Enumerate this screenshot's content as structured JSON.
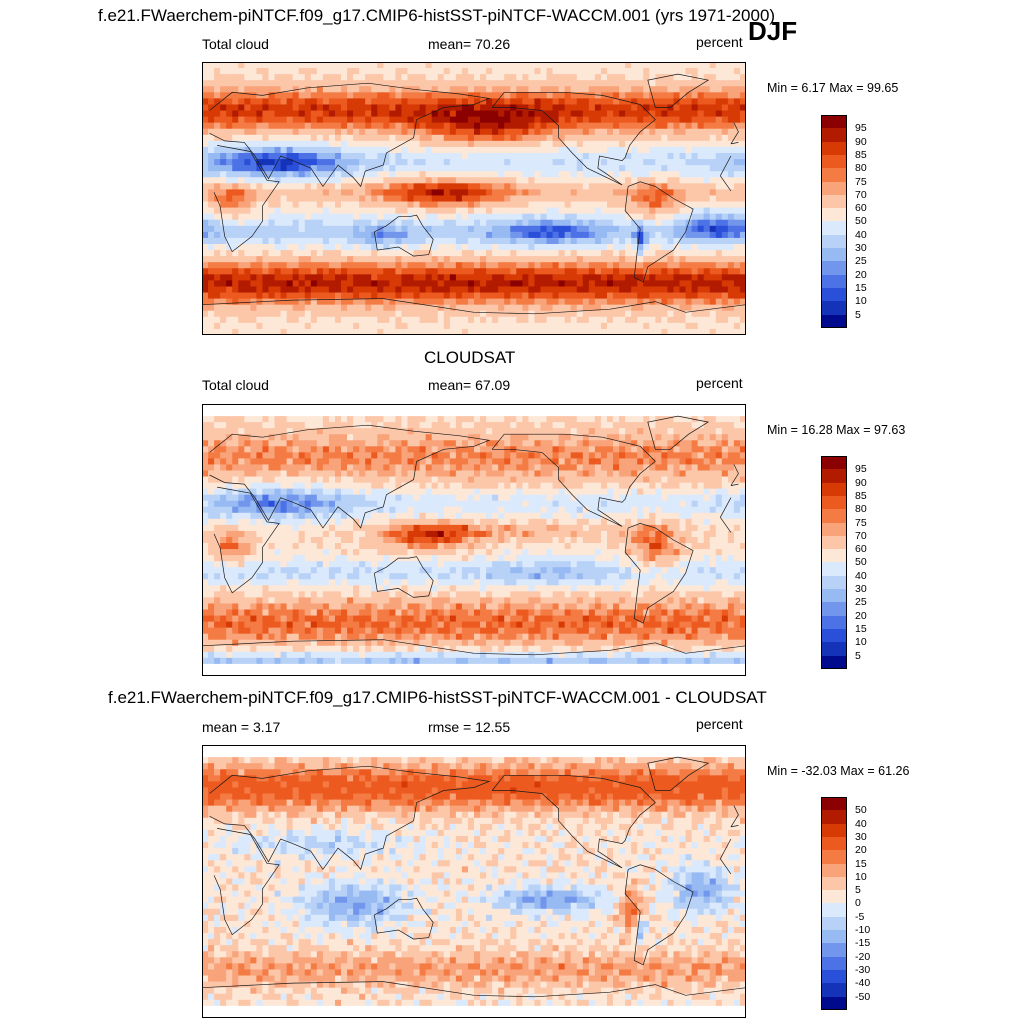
{
  "figure": {
    "season": "DJF",
    "panels": [
      {
        "title": "f.e21.FWaerchem-piNTCF.f09_g17.CMIP6-histSST-piNTCF-WACCM.001 (yrs 1971-2000)",
        "left_text": "Total cloud",
        "center_text": "mean=  70.26",
        "units": "percent",
        "minmax": "Min =   6.17 Max =  99.65",
        "field": "model",
        "colorbar": {
          "labels": [
            "95",
            "90",
            "85",
            "80",
            "75",
            "70",
            "60",
            "50",
            "40",
            "30",
            "25",
            "20",
            "15",
            "10",
            "5"
          ],
          "colors": [
            "#8b0000",
            "#b31b00",
            "#d83a05",
            "#ec5a20",
            "#f47c44",
            "#f9a37a",
            "#fcc6a8",
            "#fde8d8",
            "#dbe9fc",
            "#b8d2f7",
            "#98baf2",
            "#7296ec",
            "#4d72e6",
            "#2a4fd9",
            "#1533b8",
            "#000a8c"
          ]
        }
      },
      {
        "title": "CLOUDSAT",
        "left_text": "Total cloud",
        "center_text": "mean=  67.09",
        "units": "percent",
        "minmax": "Min =  16.28 Max =  97.63",
        "field": "obs",
        "colorbar": {
          "labels": [
            "95",
            "90",
            "85",
            "80",
            "75",
            "70",
            "60",
            "50",
            "40",
            "30",
            "25",
            "20",
            "15",
            "10",
            "5"
          ],
          "colors": [
            "#8b0000",
            "#b31b00",
            "#d83a05",
            "#ec5a20",
            "#f47c44",
            "#f9a37a",
            "#fcc6a8",
            "#fde8d8",
            "#dbe9fc",
            "#b8d2f7",
            "#98baf2",
            "#7296ec",
            "#4d72e6",
            "#2a4fd9",
            "#1533b8",
            "#000a8c"
          ]
        }
      },
      {
        "title": "f.e21.FWaerchem-piNTCF.f09_g17.CMIP6-histSST-piNTCF-WACCM.001 - CLOUDSAT",
        "left_text": "mean =   3.17",
        "center_text": "rmse =  12.55",
        "units": "percent",
        "minmax": "Min = -32.03 Max =  61.26",
        "field": "diff",
        "colorbar": {
          "labels": [
            "50",
            "40",
            "30",
            "20",
            "15",
            "10",
            "5",
            "0",
            "-5",
            "-10",
            "-15",
            "-20",
            "-30",
            "-40",
            "-50"
          ],
          "colors": [
            "#8b0000",
            "#b31b00",
            "#d83a05",
            "#ec5a20",
            "#f47c44",
            "#f9a37a",
            "#fcc6a8",
            "#fde8d8",
            "#dbe9fc",
            "#b8d2f7",
            "#98baf2",
            "#7296ec",
            "#4d72e6",
            "#2a4fd9",
            "#1533b8",
            "#000a8c"
          ]
        }
      }
    ]
  }
}
